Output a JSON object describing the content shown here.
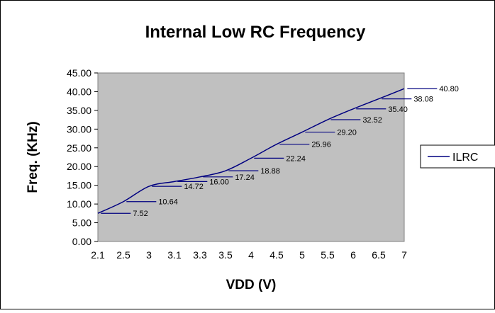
{
  "chart_data": {
    "type": "line",
    "title": "Internal Low RC Frequency",
    "xlabel": "VDD (V)",
    "ylabel": "Freq. (KHz)",
    "categories": [
      "2.1",
      "2.5",
      "3",
      "3.1",
      "3.3",
      "3.5",
      "4",
      "4.5",
      "5",
      "5.5",
      "6",
      "6.5",
      "7"
    ],
    "series": [
      {
        "name": "ILRC",
        "color": "#000080",
        "values": [
          7.52,
          10.64,
          14.72,
          16.0,
          17.24,
          18.88,
          22.24,
          25.96,
          29.2,
          32.52,
          35.4,
          38.08,
          40.8
        ]
      }
    ],
    "data_labels": [
      "7.52",
      "10.64",
      "14.72",
      "16.00",
      "17.24",
      "18.88",
      "22.24",
      "25.96",
      "29.20",
      "32.52",
      "35.40",
      "38.08",
      "40.80"
    ],
    "yticks": [
      "0.00",
      "5.00",
      "10.00",
      "15.00",
      "20.00",
      "25.00",
      "30.00",
      "35.00",
      "40.00",
      "45.00"
    ],
    "ylim": [
      0,
      45
    ],
    "grid": false,
    "plot_background": "#c0c0c0",
    "legend_position": "right"
  }
}
